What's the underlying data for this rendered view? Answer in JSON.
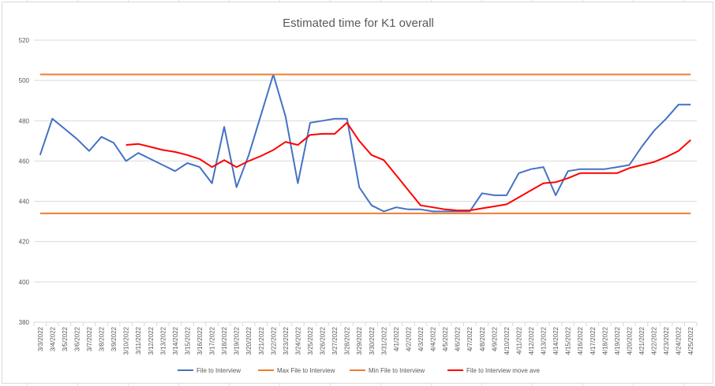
{
  "colors": {
    "file_to_interview": "#4472C4",
    "max_line": "#ED7D31",
    "min_line": "#ED7D31",
    "moving_average": "#FF0000",
    "gridline": "#D9D9D9",
    "text": "#595959"
  },
  "chart_data": {
    "type": "line",
    "title": "Estimated time for K1 overall",
    "xlabel": "",
    "ylabel": "",
    "ylim": [
      380,
      520
    ],
    "yticks": [
      380,
      400,
      420,
      440,
      460,
      480,
      500,
      520
    ],
    "grid": true,
    "legend_position": "bottom",
    "categories": [
      "3/3/2022",
      "3/4/2022",
      "3/5/2022",
      "3/6/2022",
      "3/7/2022",
      "3/8/2022",
      "3/9/2022",
      "3/10/2022",
      "3/11/2022",
      "3/12/2022",
      "3/13/2022",
      "3/14/2022",
      "3/15/2022",
      "3/16/2022",
      "3/17/2022",
      "3/18/2022",
      "3/19/2022",
      "3/20/2022",
      "3/21/2022",
      "3/22/2022",
      "3/23/2022",
      "3/24/2022",
      "3/25/2022",
      "3/26/2022",
      "3/27/2022",
      "3/28/2022",
      "3/29/2022",
      "3/30/2022",
      "3/31/2022",
      "4/1/2022",
      "4/2/2022",
      "4/3/2022",
      "4/4/2022",
      "4/5/2022",
      "4/6/2022",
      "4/7/2022",
      "4/8/2022",
      "4/9/2022",
      "4/10/2022",
      "4/11/2022",
      "4/12/2022",
      "4/13/2022",
      "4/14/2022",
      "4/15/2022",
      "4/16/2022",
      "4/17/2022",
      "4/18/2022",
      "4/19/2022",
      "4/20/2022",
      "4/21/2022",
      "4/22/2022",
      "4/23/2022",
      "4/24/2022",
      "4/25/2022"
    ],
    "series": [
      {
        "name": "File to Interview",
        "color": "#4472C4",
        "values": [
          463,
          481,
          476,
          471,
          465,
          472,
          469,
          460,
          464,
          461,
          458,
          455,
          459,
          457,
          449,
          477,
          447,
          463,
          483,
          503,
          482,
          449,
          479,
          480,
          481,
          481,
          447,
          438,
          435,
          437,
          436,
          436,
          435,
          435,
          435,
          435,
          444,
          443,
          443,
          454,
          456,
          457,
          443,
          455,
          456,
          456,
          456,
          457,
          458,
          467,
          475,
          481,
          488,
          488
        ]
      },
      {
        "name": "Max File to Interview",
        "color": "#ED7D31",
        "values": [
          503,
          503,
          503,
          503,
          503,
          503,
          503,
          503,
          503,
          503,
          503,
          503,
          503,
          503,
          503,
          503,
          503,
          503,
          503,
          503,
          503,
          503,
          503,
          503,
          503,
          503,
          503,
          503,
          503,
          503,
          503,
          503,
          503,
          503,
          503,
          503,
          503,
          503,
          503,
          503,
          503,
          503,
          503,
          503,
          503,
          503,
          503,
          503,
          503,
          503,
          503,
          503,
          503,
          503
        ]
      },
      {
        "name": "Min File to Interview",
        "color": "#ED7D31",
        "values": [
          434,
          434,
          434,
          434,
          434,
          434,
          434,
          434,
          434,
          434,
          434,
          434,
          434,
          434,
          434,
          434,
          434,
          434,
          434,
          434,
          434,
          434,
          434,
          434,
          434,
          434,
          434,
          434,
          434,
          434,
          434,
          434,
          434,
          434,
          434,
          434,
          434,
          434,
          434,
          434,
          434,
          434,
          434,
          434,
          434,
          434,
          434,
          434,
          434,
          434,
          434,
          434,
          434,
          434
        ]
      },
      {
        "name": "File to Interview move ave",
        "color": "#FF0000",
        "values": [
          null,
          null,
          null,
          null,
          null,
          null,
          null,
          468,
          468.5,
          467,
          465.5,
          464.5,
          463,
          461,
          457,
          460.5,
          457,
          460,
          462.5,
          465.5,
          469.5,
          468,
          473,
          473.5,
          473.5,
          479,
          470,
          463,
          460.5,
          453,
          445.5,
          438,
          437,
          436,
          435.5,
          435.5,
          436.5,
          437.5,
          438.5,
          442,
          445.5,
          449,
          449.5,
          451.5,
          454,
          454,
          454,
          454,
          456.5,
          458,
          459.5,
          462,
          465,
          470.5
        ]
      }
    ]
  }
}
